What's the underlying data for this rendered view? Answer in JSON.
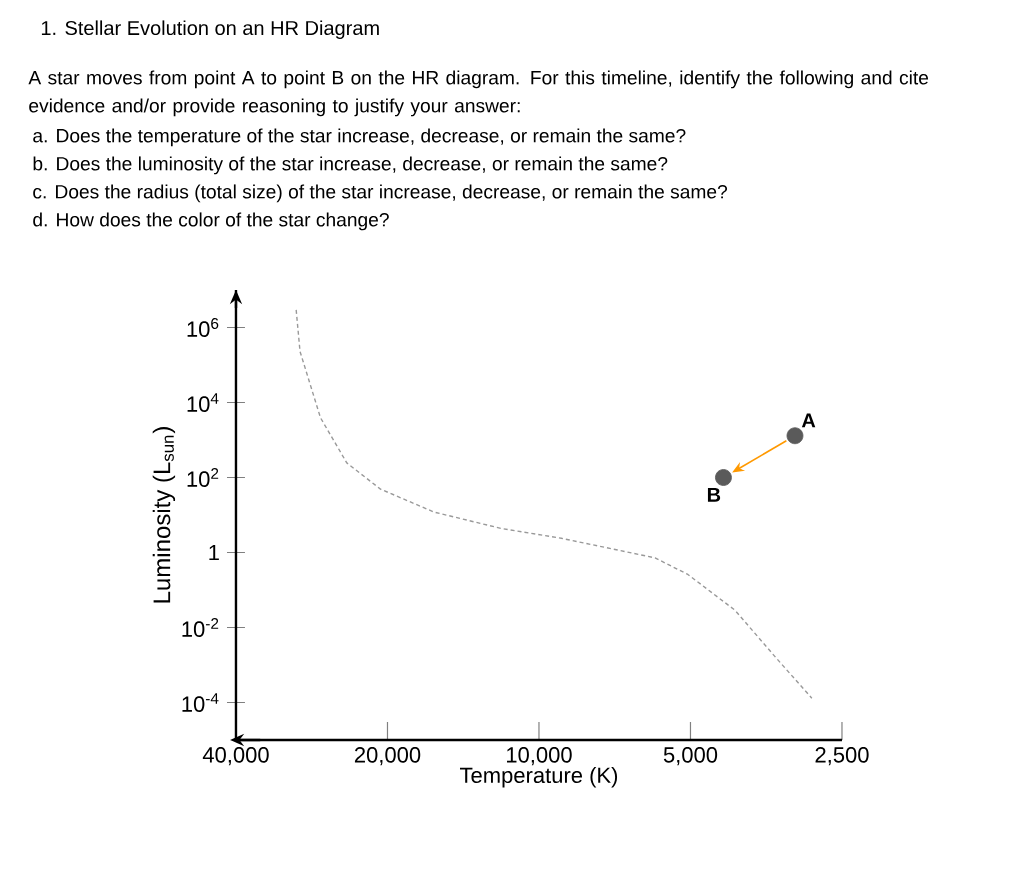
{
  "chart_data": {
    "type": "line",
    "title": "1.   Stellar Evolution on an HR Diagram",
    "subtitle": "A star moves from point A to point B on the HR diagram. For this timeline, identify the following and cite evidence and/or provide reasoning to justify your answer:",
    "annotations": [
      "a.   Does the temperature of the star increase, decrease, or remain the same?",
      "b.   Does the luminosity of the star increase, decrease, or remain the same?",
      "c.   Does the radius (total size) of the star increase, decrease, or remain the same?",
      "d.   How does the color of the star change?",
      {
        "text": "A",
        "x": 3100,
        "y": 1300
      },
      {
        "text": "B",
        "x": 4300,
        "y": 100
      }
    ],
    "xlabel": "Temperature (K)",
    "ylabel": "Luminosity (L$_{sun}$)",
    "log": "xy",
    "xlim": [
      40000,
      2500
    ],
    "ylim": [
      1e-05,
      10000000
    ],
    "xticks": [
      {
        "value": 40000,
        "label": "40,000"
      },
      {
        "value": 20000,
        "label": "20,000"
      },
      {
        "value": 10000,
        "label": "10,000"
      },
      {
        "value": 5000,
        "label": "5,000"
      },
      {
        "value": 2500,
        "label": "2,500"
      }
    ],
    "yticks": [
      {
        "value": 1000000,
        "label": "10$^{6}$"
      },
      {
        "value": 10000,
        "label": "10$^{4}$"
      },
      {
        "value": 100,
        "label": "10$^{2}$"
      },
      1,
      {
        "value": 0.01,
        "label": "10$^{-2}$"
      },
      {
        "value": 0.0001,
        "label": "10$^{-4}$"
      }
    ],
    "series": [
      {
        "color": "#999999",
        "line_style": "dashed",
        "marker": "none",
        "x": [
          30370,
          29840,
          27170,
          24090,
          20650,
          16170,
          11900,
          9030,
          5880,
          5060,
          4080,
          3400,
          2870
        ],
        "values": [
          2950000,
          230000,
          3900,
          245,
          49,
          12,
          4.4,
          2.4,
          0.72,
          0.26,
          0.029,
          0.0017,
          0.00013
        ]
      },
      {
        "type": "scatter",
        "color": "#5a5a5a",
        "marker": "circle",
        "x": [
          3100,
          4300
        ],
        "values": [
          1300,
          100
        ]
      }
    ]
  }
}
